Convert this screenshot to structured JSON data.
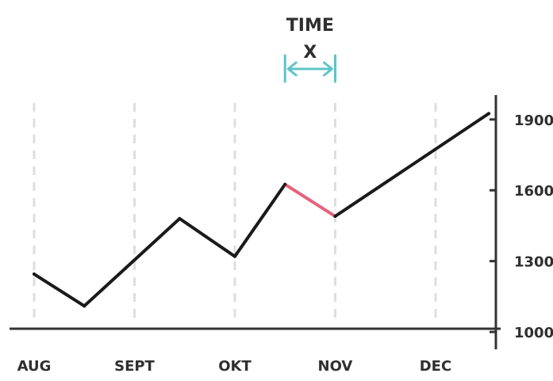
{
  "chart_data": {
    "type": "line",
    "title": "",
    "xlabel": "",
    "ylabel": "",
    "x_tick_labels": [
      "AUG",
      "SEPT",
      "OKT",
      "NOV",
      "DEC"
    ],
    "y_tick_labels": [
      "1000",
      "1300",
      "1600",
      "1900"
    ],
    "y_ticks": [
      1000,
      1300,
      1600,
      1900
    ],
    "ylim": [
      970,
      1990
    ],
    "xlim": [
      0,
      4.53
    ],
    "x_units": "months after AUG (0 = AUG, 4 = DEC)",
    "grid": "vertical dashed lines at month ticks",
    "y_axis_position": "right",
    "series": [
      {
        "color": "#1a1a1a",
        "x": [
          0,
          0.5,
          1.45,
          2.0,
          2.5,
          3.0,
          4.53
        ],
        "y": [
          1245,
          1110,
          1480,
          1320,
          1625,
          1490,
          1925
        ]
      }
    ],
    "highlight": {
      "color": "#e8617a",
      "x_start": 2.5,
      "x_end": 3.0
    },
    "annotation": {
      "line1": "TIME",
      "line2": "X",
      "color": "#5ec4c8",
      "x_start": 2.5,
      "x_end": 3.0
    }
  }
}
